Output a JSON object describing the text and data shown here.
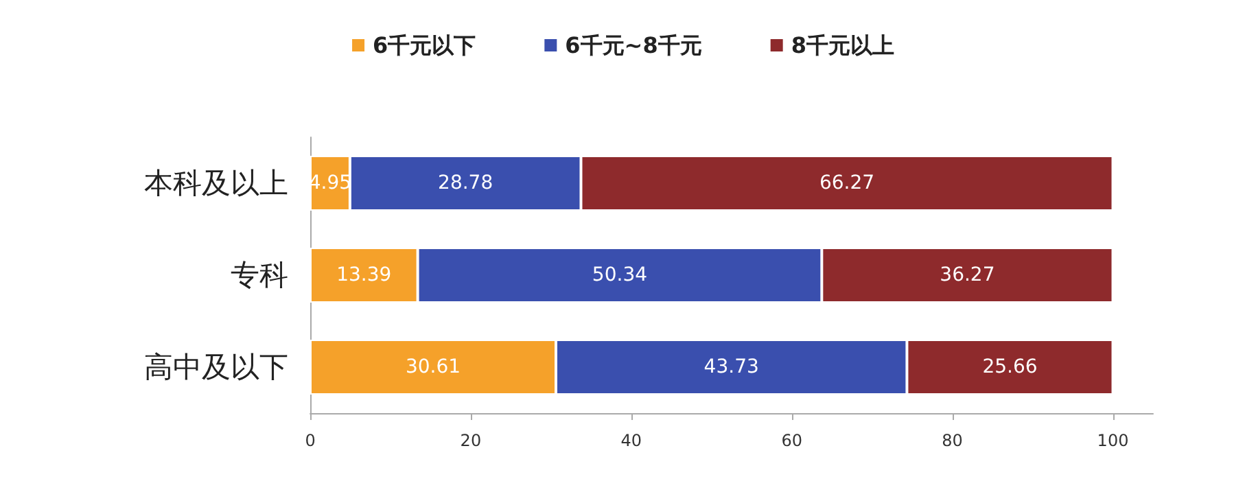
{
  "chart_data": {
    "type": "bar",
    "orientation": "horizontal",
    "stacked": true,
    "categories": [
      "本科及以上",
      "专科",
      "高中及以下"
    ],
    "series": [
      {
        "name": "6千元以下",
        "color": "#f5a12a",
        "values": [
          4.95,
          13.39,
          30.61
        ]
      },
      {
        "name": "6千元~8千元",
        "color": "#3a4fae",
        "values": [
          28.78,
          50.34,
          43.73
        ]
      },
      {
        "name": "8千元以上",
        "color": "#8e2a2c",
        "values": [
          66.27,
          36.27,
          25.66
        ]
      }
    ],
    "xlim": [
      0,
      105
    ],
    "xticks": [
      0,
      20,
      40,
      60,
      80,
      100
    ],
    "data_labels": true,
    "legend": "top",
    "grid": false
  }
}
